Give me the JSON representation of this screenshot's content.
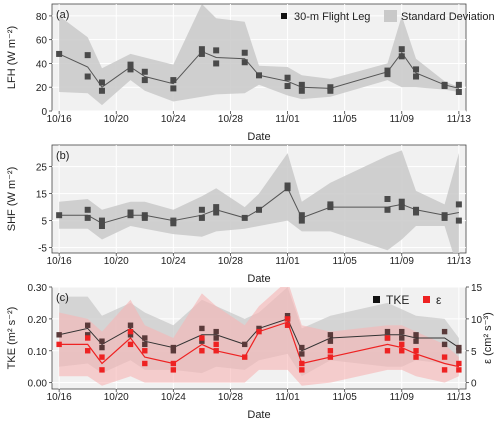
{
  "chart_data": [
    {
      "panel": "(a)",
      "type": "line",
      "ylabel": "LFH (W m⁻²)",
      "xlabel": "Date",
      "ylim": [
        0,
        90
      ],
      "yticks": [
        0,
        20,
        40,
        60,
        80
      ],
      "xlim": [
        -0.5,
        28.5
      ],
      "x_tick_labels": [
        "10/16",
        "10/20",
        "10/24",
        "10/28",
        "11/01",
        "11/05",
        "11/09",
        "11/13"
      ],
      "x_tick_positions": [
        0,
        4,
        8,
        12,
        16,
        20,
        24,
        28
      ],
      "legend": [
        "30-m Flight Leg",
        "Standard Deviation"
      ],
      "legend_position": "top-right",
      "series": [
        {
          "name": "30-m Flight Leg",
          "points": [
            [
              0,
              48
            ],
            [
              2,
              47
            ],
            [
              2,
              29
            ],
            [
              3,
              24
            ],
            [
              3,
              17
            ],
            [
              5,
              39
            ],
            [
              5,
              35
            ],
            [
              6,
              33
            ],
            [
              6,
              26
            ],
            [
              8,
              26
            ],
            [
              8,
              19
            ],
            [
              10,
              52
            ],
            [
              10,
              48
            ],
            [
              11,
              51
            ],
            [
              11,
              40
            ],
            [
              13,
              49
            ],
            [
              13,
              41
            ],
            [
              14,
              30
            ],
            [
              16,
              28
            ],
            [
              16,
              21
            ],
            [
              17,
              22
            ],
            [
              17,
              17
            ],
            [
              19,
              17
            ],
            [
              19,
              20
            ],
            [
              23,
              34
            ],
            [
              23,
              31
            ],
            [
              24,
              52
            ],
            [
              24,
              46
            ],
            [
              25,
              35
            ],
            [
              25,
              29
            ],
            [
              27,
              22
            ],
            [
              27,
              21
            ],
            [
              28,
              22
            ],
            [
              28,
              16
            ]
          ]
        },
        {
          "name": "mean",
          "x": [
            0,
            2,
            3,
            5,
            6,
            8,
            10,
            11,
            13,
            14,
            16,
            17,
            19,
            23,
            24,
            25,
            27,
            28
          ],
          "values": [
            48,
            37,
            20,
            37,
            29,
            23,
            50,
            45,
            44,
            30,
            25,
            20,
            19,
            33,
            49,
            32,
            22,
            19
          ]
        },
        {
          "name": "Standard Deviation",
          "x": [
            0,
            2,
            3,
            5,
            6,
            8,
            10,
            11,
            13,
            14,
            16,
            17,
            19,
            23,
            24,
            25,
            27,
            28
          ],
          "upper": [
            80,
            62,
            36,
            48,
            45,
            39,
            90,
            78,
            75,
            38,
            37,
            30,
            27,
            40,
            80,
            44,
            25,
            20
          ],
          "lower": [
            16,
            15,
            5,
            26,
            17,
            8,
            12,
            14,
            15,
            22,
            13,
            10,
            12,
            26,
            20,
            20,
            18,
            16
          ]
        }
      ]
    },
    {
      "panel": "(b)",
      "type": "line",
      "ylabel": "SHF (W m⁻²)",
      "xlabel": "Date",
      "ylim": [
        -7,
        33
      ],
      "yticks": [
        -5,
        5,
        15,
        25
      ],
      "xlim": [
        -0.5,
        28.5
      ],
      "x_tick_labels": [
        "10/16",
        "10/20",
        "10/24",
        "10/28",
        "11/01",
        "11/05",
        "11/09",
        "11/13"
      ],
      "x_tick_positions": [
        0,
        4,
        8,
        12,
        16,
        20,
        24,
        28
      ],
      "series": [
        {
          "name": "30-m Flight Leg",
          "points": [
            [
              0,
              7
            ],
            [
              2,
              9
            ],
            [
              2,
              6
            ],
            [
              3,
              5
            ],
            [
              3,
              3
            ],
            [
              5,
              8
            ],
            [
              5,
              7
            ],
            [
              6,
              7
            ],
            [
              6,
              6
            ],
            [
              8,
              5
            ],
            [
              8,
              4
            ],
            [
              10,
              9
            ],
            [
              10,
              6
            ],
            [
              11,
              10
            ],
            [
              11,
              8
            ],
            [
              13,
              6
            ],
            [
              14,
              9
            ],
            [
              16,
              18
            ],
            [
              16,
              17
            ],
            [
              17,
              7
            ],
            [
              17,
              5
            ],
            [
              19,
              11
            ],
            [
              19,
              10
            ],
            [
              23,
              13
            ],
            [
              23,
              9
            ],
            [
              24,
              12
            ],
            [
              24,
              10
            ],
            [
              25,
              9
            ],
            [
              25,
              8
            ],
            [
              27,
              7
            ],
            [
              27,
              6
            ],
            [
              28,
              11
            ],
            [
              28,
              5
            ]
          ]
        },
        {
          "name": "mean",
          "x": [
            0,
            2,
            3,
            5,
            6,
            8,
            10,
            11,
            13,
            14,
            16,
            17,
            19,
            23,
            24,
            25,
            27,
            28
          ],
          "values": [
            7,
            7,
            4,
            7,
            7,
            5,
            7,
            9,
            6,
            9,
            17,
            6,
            10,
            10,
            11,
            9,
            7,
            8
          ]
        },
        {
          "name": "Standard Deviation",
          "x": [
            0,
            2,
            3,
            5,
            6,
            8,
            10,
            11,
            13,
            14,
            16,
            17,
            19,
            23,
            24,
            25,
            27,
            28
          ],
          "upper": [
            12,
            13,
            9,
            12,
            12,
            9,
            14,
            17,
            10,
            15,
            30,
            12,
            19,
            29,
            31,
            16,
            11,
            30
          ],
          "lower": [
            2,
            2,
            -2,
            3,
            2,
            0,
            -1,
            1,
            2,
            3,
            5,
            1,
            1,
            -6,
            -2,
            3,
            3,
            -14
          ]
        }
      ]
    },
    {
      "panel": "(c)",
      "type": "line",
      "ylabel": "TKE (m² s⁻²)",
      "y2label": "ε (cm² s⁻³)",
      "xlabel": "Date",
      "ylim": [
        -0.02,
        0.3
      ],
      "yticks": [
        0.0,
        0.1,
        0.2,
        0.3
      ],
      "ytick_labels": [
        "0.00",
        "0.10",
        "0.20",
        "0.30"
      ],
      "y2lim": [
        -1,
        15
      ],
      "y2ticks": [
        0,
        5,
        10,
        15
      ],
      "xlim": [
        -0.5,
        28.5
      ],
      "x_tick_labels": [
        "10/16",
        "10/20",
        "10/24",
        "10/28",
        "11/01",
        "11/05",
        "11/09",
        "11/13"
      ],
      "x_tick_positions": [
        0,
        4,
        8,
        12,
        16,
        20,
        24,
        28
      ],
      "legend": [
        "TKE",
        "ε"
      ],
      "legend_position": "top-right",
      "colors": {
        "tke": "#222222",
        "eps": "#ee2222",
        "eps_band": "#f6b4b4",
        "tke_band": "#c8c8c8"
      },
      "series": [
        {
          "name": "TKE",
          "points": [
            [
              0,
              0.15
            ],
            [
              2,
              0.18
            ],
            [
              2,
              0.15
            ],
            [
              3,
              0.13
            ],
            [
              3,
              0.11
            ],
            [
              5,
              0.18
            ],
            [
              5,
              0.15
            ],
            [
              6,
              0.14
            ],
            [
              6,
              0.12
            ],
            [
              8,
              0.11
            ],
            [
              8,
              0.1
            ],
            [
              10,
              0.17
            ],
            [
              10,
              0.13
            ],
            [
              11,
              0.16
            ],
            [
              11,
              0.14
            ],
            [
              13,
              0.12
            ],
            [
              14,
              0.17
            ],
            [
              16,
              0.21
            ],
            [
              16,
              0.2
            ],
            [
              17,
              0.11
            ],
            [
              17,
              0.09
            ],
            [
              19,
              0.15
            ],
            [
              19,
              0.13
            ],
            [
              23,
              0.16
            ],
            [
              23,
              0.14
            ],
            [
              24,
              0.16
            ],
            [
              24,
              0.14
            ],
            [
              25,
              0.15
            ],
            [
              25,
              0.13
            ],
            [
              27,
              0.16
            ],
            [
              27,
              0.12
            ],
            [
              28,
              0.11
            ],
            [
              28,
              0.1
            ]
          ],
          "x": [
            0,
            2,
            3,
            5,
            6,
            8,
            10,
            11,
            13,
            14,
            16,
            17,
            19,
            23,
            24,
            25,
            27,
            28
          ],
          "values": [
            0.15,
            0.17,
            0.12,
            0.17,
            0.13,
            0.11,
            0.15,
            0.15,
            0.12,
            0.17,
            0.2,
            0.1,
            0.14,
            0.15,
            0.15,
            0.14,
            0.14,
            0.11
          ],
          "upper": [
            0.27,
            0.27,
            0.21,
            0.25,
            0.22,
            0.18,
            0.26,
            0.24,
            0.2,
            0.22,
            0.3,
            0.17,
            0.21,
            0.25,
            0.23,
            0.21,
            0.2,
            0.14
          ],
          "lower": [
            0.05,
            0.06,
            0.03,
            0.07,
            0.04,
            0.04,
            0.03,
            0.05,
            0.04,
            0.07,
            0.09,
            0.02,
            0.07,
            0.05,
            0.05,
            0.07,
            0.06,
            0.05
          ]
        },
        {
          "name": "ε",
          "points": [
            [
              0,
              6
            ],
            [
              2,
              7
            ],
            [
              2,
              5
            ],
            [
              3,
              4
            ],
            [
              3,
              2
            ],
            [
              5,
              8
            ],
            [
              5,
              6
            ],
            [
              6,
              5
            ],
            [
              6,
              3
            ],
            [
              8,
              3
            ],
            [
              8,
              2
            ],
            [
              10,
              7
            ],
            [
              10,
              5
            ],
            [
              11,
              6
            ],
            [
              11,
              5
            ],
            [
              13,
              4
            ],
            [
              14,
              8
            ],
            [
              16,
              10
            ],
            [
              16,
              9
            ],
            [
              17,
              3
            ],
            [
              17,
              2
            ],
            [
              19,
              5
            ],
            [
              19,
              4
            ],
            [
              23,
              7
            ],
            [
              23,
              5
            ],
            [
              24,
              6
            ],
            [
              24,
              5
            ],
            [
              25,
              5
            ],
            [
              25,
              4
            ],
            [
              27,
              4
            ],
            [
              27,
              2
            ],
            [
              28,
              3
            ],
            [
              28,
              2
            ]
          ],
          "x": [
            0,
            2,
            3,
            5,
            6,
            8,
            10,
            11,
            13,
            14,
            16,
            17,
            19,
            23,
            24,
            25,
            27,
            28
          ],
          "values": [
            6,
            6,
            3,
            7,
            4,
            3,
            6,
            5,
            4,
            8,
            9.5,
            3,
            4,
            6,
            5.5,
            4.5,
            3,
            2.5
          ],
          "upper": [
            11,
            10,
            8,
            13,
            9,
            7,
            14,
            12,
            9,
            12,
            16,
            9,
            8,
            9,
            9,
            8,
            6,
            4
          ],
          "lower": [
            1,
            1,
            -0.5,
            1,
            0,
            0,
            0,
            0,
            0,
            2,
            2,
            -0.5,
            0,
            2,
            2,
            1,
            0,
            1
          ]
        }
      ]
    }
  ]
}
